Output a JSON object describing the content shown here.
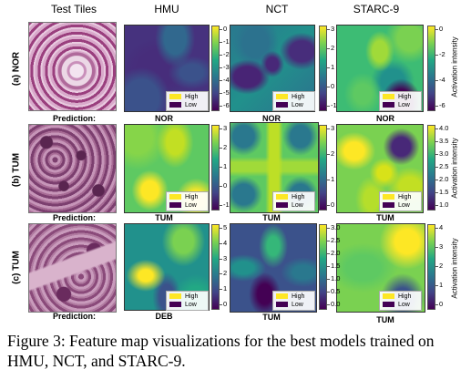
{
  "headers": {
    "tiles": "Test Tiles",
    "hmu": "HMU",
    "nct": "NCT",
    "starc": "STARC-9"
  },
  "rows": [
    {
      "label": "(a) NOR",
      "prediction_label": "Prediction:",
      "predictions": [
        "NOR",
        "NOR",
        "NOR"
      ]
    },
    {
      "label": "(b) TUM",
      "prediction_label": "Prediction:",
      "predictions": [
        "TUM",
        "TUM",
        "TUM"
      ]
    },
    {
      "label": "(c) TUM",
      "prediction_label": "Prediction:",
      "predictions": [
        "DEB",
        "TUM",
        "TUM"
      ]
    }
  ],
  "colorbars": [
    [
      [
        "0",
        "-1",
        "-2",
        "-3",
        "-4",
        "-5",
        "-6"
      ],
      [
        "3",
        "2",
        "1",
        "0",
        "-1"
      ],
      [
        "0",
        "-2",
        "-4",
        "-6"
      ]
    ],
    [
      [
        "3",
        "2",
        "1",
        "0",
        "-1"
      ],
      [
        "3",
        "2",
        "1",
        "0"
      ],
      [
        "4.0",
        "3.5",
        "3.0",
        "2.5",
        "2.0",
        "1.5",
        "1.0"
      ]
    ],
    [
      [
        "5",
        "4",
        "3",
        "2",
        "1",
        "0"
      ],
      [
        "3.0",
        "2.5",
        "2.0",
        "1.5",
        "1.0",
        "0.5",
        "0.0"
      ],
      [
        "4",
        "3",
        "2",
        "1",
        "0"
      ]
    ]
  ],
  "activation_label": "Activation intensity",
  "legend": {
    "high": "High",
    "low": "Low",
    "high_color": "#fde725",
    "low_color": "#440154"
  },
  "caption": "Figure 3: Feature map visualizations for the best models trained on HMU, NCT, and STARC-9.",
  "colormap": "viridis"
}
